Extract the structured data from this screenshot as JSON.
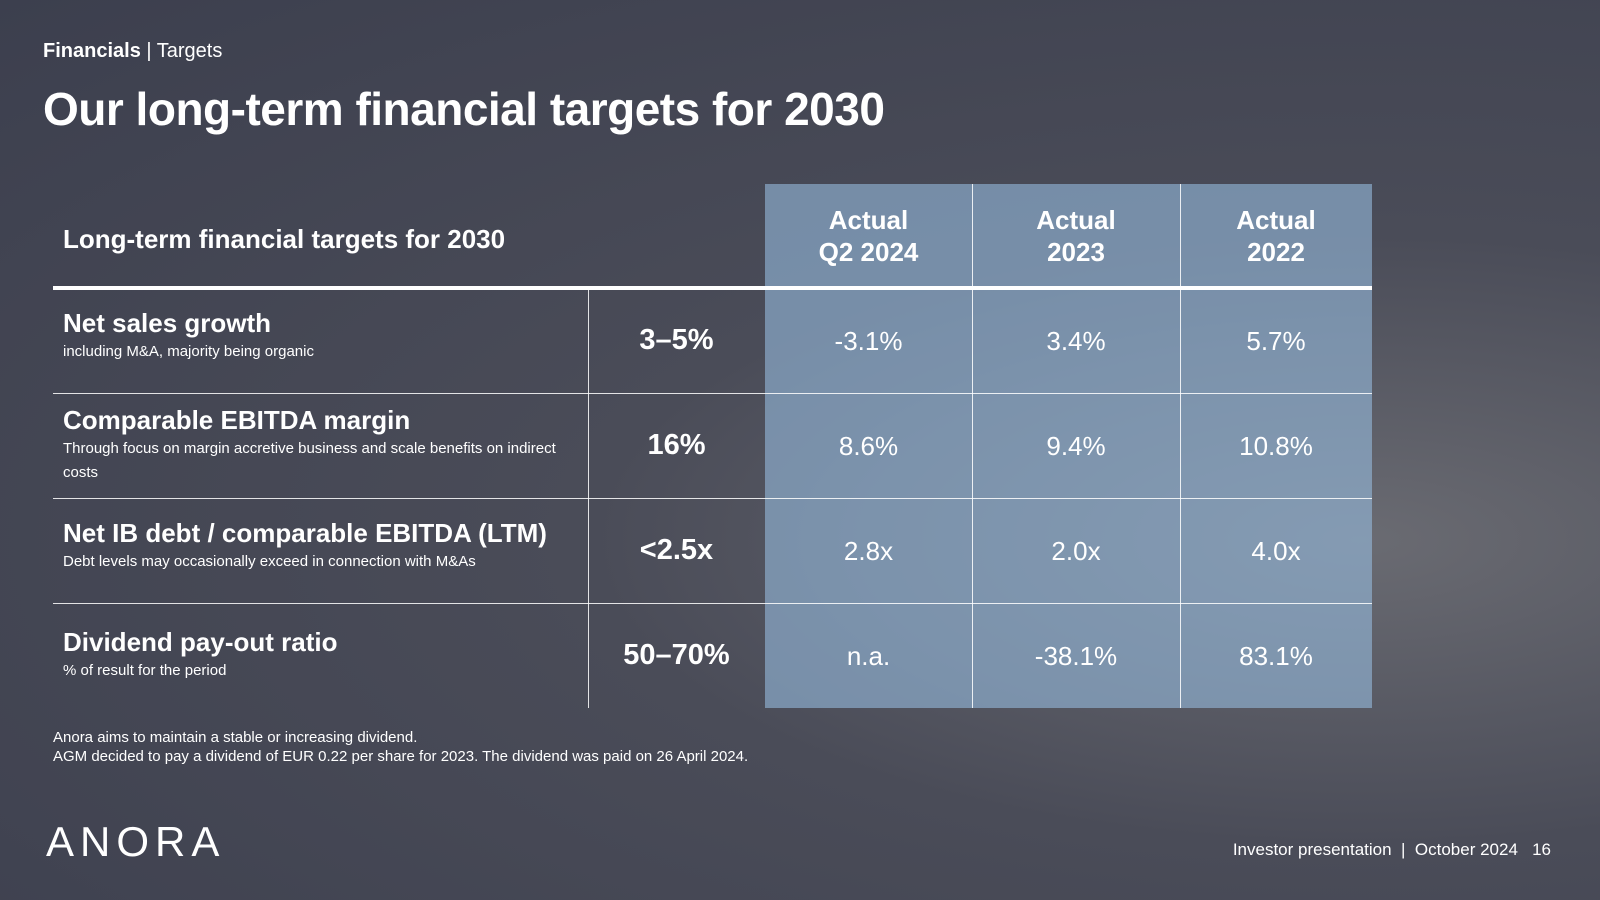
{
  "header": {
    "section": "Financials",
    "subsection": "Targets"
  },
  "title": "Our long-term financial targets for 2030",
  "table": {
    "header_label": "Long-term financial targets for 2030",
    "columns": [
      {
        "line1": "Actual",
        "line2": "Q2 2024"
      },
      {
        "line1": "Actual",
        "line2": "2023"
      },
      {
        "line1": "Actual",
        "line2": "2022"
      }
    ],
    "rows": [
      {
        "name": "Net sales growth",
        "description": "including M&A, majority being organic",
        "target": "3–5%",
        "actuals": [
          "-3.1%",
          "3.4%",
          "5.7%"
        ]
      },
      {
        "name": "Comparable EBITDA margin",
        "description": "Through focus on margin accretive business and scale benefits on indirect costs",
        "target": "16%",
        "actuals": [
          "8.6%",
          "9.4%",
          "10.8%"
        ]
      },
      {
        "name": "Net IB debt / comparable EBITDA (LTM)",
        "description": "Debt levels may occasionally exceed in connection with M&As",
        "target": "<2.5x",
        "actuals": [
          "2.8x",
          "2.0x",
          "4.0x"
        ]
      },
      {
        "name": "Dividend pay-out ratio",
        "description": "% of result for the period",
        "target": "50–70%",
        "actuals": [
          "n.a.",
          "-38.1%",
          "83.1%"
        ]
      }
    ]
  },
  "footnotes": [
    "Anora aims to maintain a stable or increasing dividend.",
    "AGM decided to pay a dividend of EUR 0.22 per share for 2023. The dividend was paid on 26 April 2024."
  ],
  "logo": "ANORA",
  "footer": {
    "label": "Investor presentation",
    "date": "October 2024",
    "page": "16"
  }
}
